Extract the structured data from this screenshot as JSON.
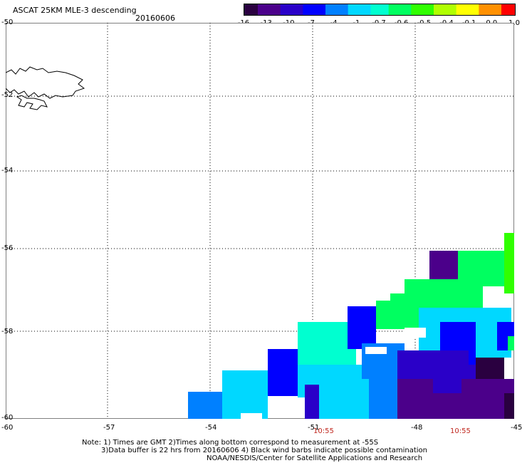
{
  "header": {
    "title": "ASCAT 25KM MLE-3 descending",
    "date": "20160606"
  },
  "colorbar": {
    "tick_labels": [
      "-16",
      "-13",
      "-10",
      "-7",
      "-4",
      "-1",
      "-0.7",
      "-0.6",
      "-0.5",
      "-0.4",
      "-0.1",
      "0.0",
      "1.0"
    ],
    "colors": [
      "#2a0040",
      "#4b008a",
      "#2a00c8",
      "#0000ff",
      "#0080ff",
      "#00d8ff",
      "#00ffd0",
      "#00ff60",
      "#30ff00",
      "#b0ff00",
      "#ffff00",
      "#ff9000",
      "#ff0000"
    ]
  },
  "map": {
    "lat_labels": [
      "-50",
      "-52",
      "-54",
      "-56",
      "-58",
      "-60"
    ],
    "lon_labels": [
      "-60",
      "-57",
      "-54",
      "-51",
      "-48",
      "-45"
    ],
    "time_labels": [
      "10:55",
      "10:55"
    ]
  },
  "footer": {
    "line1": "Note: 1) Times are GMT 2)Times along bottom correspond to measurement at -55S",
    "line2": "3)Data buffer is 22 hrs from 20160606 4) Black wind barbs indicate possible contamination",
    "line3": "NOAA/NESDIS/Center for Satellite Applications and Research"
  }
}
